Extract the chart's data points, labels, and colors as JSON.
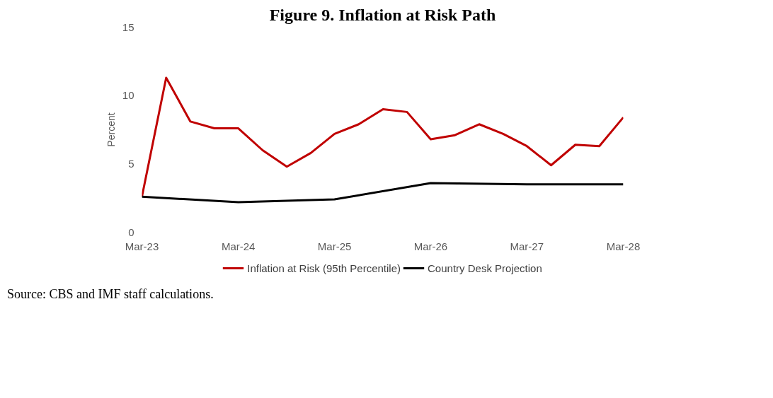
{
  "chart_data": {
    "type": "line",
    "title": "Figure 9. Inflation at Risk Path",
    "ylabel": "Percent",
    "x": [
      "2023-03",
      "2023-06",
      "2023-09",
      "2023-12",
      "2024-03",
      "2024-06",
      "2024-09",
      "2024-12",
      "2025-03",
      "2025-06",
      "2025-09",
      "2025-12",
      "2026-03",
      "2026-06",
      "2026-09",
      "2026-12",
      "2027-03",
      "2027-06",
      "2027-09",
      "2027-12",
      "2028-03"
    ],
    "series": [
      {
        "name": "Inflation at Risk (95th Percentile)",
        "color": "#c00000",
        "values": [
          2.6,
          11.3,
          8.1,
          7.6,
          7.6,
          6.0,
          4.8,
          5.8,
          7.2,
          7.9,
          9.0,
          8.8,
          6.8,
          7.1,
          7.9,
          7.2,
          6.3,
          4.9,
          6.4,
          6.3,
          8.4
        ]
      },
      {
        "name": "Country Desk Projection",
        "color": "#000000",
        "x": [
          "2023-03",
          "2024-03",
          "2025-03",
          "2026-03",
          "2027-03",
          "2028-03"
        ],
        "values": [
          2.6,
          2.2,
          2.4,
          3.6,
          3.5,
          3.5
        ]
      }
    ],
    "xlim": [
      "2023-03",
      "2028-03"
    ],
    "ylim": [
      0,
      15
    ],
    "yticks": [
      0,
      5,
      10,
      15
    ],
    "xticks": [
      {
        "value": "2023-03",
        "label": "Mar-23"
      },
      {
        "value": "2024-03",
        "label": "Mar-24"
      },
      {
        "value": "2025-03",
        "label": "Mar-25"
      },
      {
        "value": "2026-03",
        "label": "Mar-26"
      },
      {
        "value": "2027-03",
        "label": "Mar-27"
      },
      {
        "value": "2028-03",
        "label": "Mar-28"
      }
    ],
    "grid": false,
    "legend": "bottom",
    "marker": "none",
    "line_style": "solid",
    "annotations": [
      "Source: CBS and IMF staff calculations."
    ]
  }
}
